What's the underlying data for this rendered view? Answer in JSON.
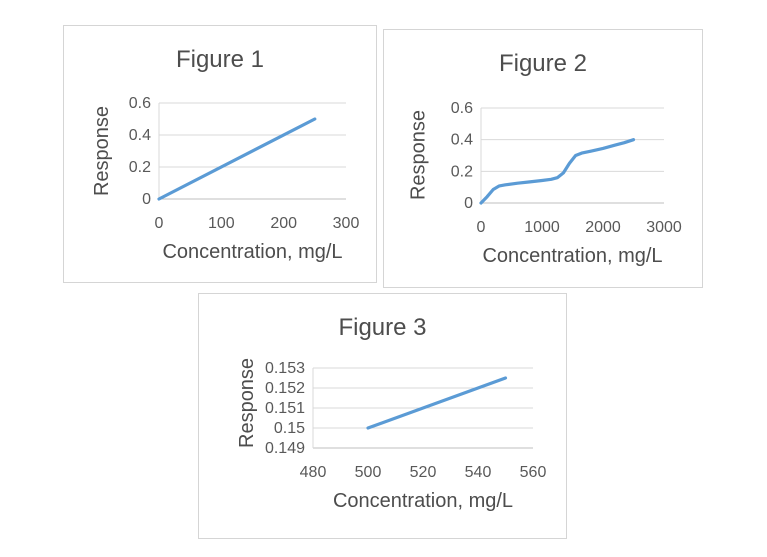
{
  "window": {
    "background": "#ffffff"
  },
  "colors": {
    "line": "#5B9BD5",
    "grid": "#D9D9D9",
    "axis": "#BFBFBF",
    "tick_text": "#595959",
    "title_text": "#4D4D4D",
    "panel_border": "#D5D5D5"
  },
  "chart_data": [
    {
      "type": "line",
      "title": "Figure 1",
      "xlabel": "Concentration, mg/L",
      "ylabel": "Response",
      "xlim": [
        0,
        300
      ],
      "ylim": [
        0,
        0.6
      ],
      "xticks": [
        0,
        100,
        200,
        300
      ],
      "xtick_labels": [
        "0",
        "100",
        "200",
        "300"
      ],
      "yticks": [
        0,
        0.2,
        0.4,
        0.6
      ],
      "ytick_labels": [
        "0",
        "0.2",
        "0.4",
        "0.6"
      ],
      "grid": "horizontal",
      "legend": "none",
      "series": [
        {
          "name": "Response",
          "color": "#5B9BD5",
          "points": [
            [
              0,
              0
            ],
            [
              250,
              0.5
            ]
          ]
        }
      ]
    },
    {
      "type": "line",
      "title": "Figure 2",
      "xlabel": "Concentration, mg/L",
      "ylabel": "Response",
      "xlim": [
        0,
        3000
      ],
      "ylim": [
        0,
        0.6
      ],
      "xticks": [
        0,
        1000,
        2000,
        3000
      ],
      "xtick_labels": [
        "0",
        "1000",
        "2000",
        "3000"
      ],
      "yticks": [
        0,
        0.2,
        0.4,
        0.6
      ],
      "ytick_labels": [
        "0",
        "0.2",
        "0.4",
        "0.6"
      ],
      "grid": "horizontal",
      "legend": "none",
      "series": [
        {
          "name": "Response",
          "color": "#5B9BD5",
          "points": [
            [
              0,
              0
            ],
            [
              100,
              0.04
            ],
            [
              200,
              0.085
            ],
            [
              300,
              0.108
            ],
            [
              400,
              0.115
            ],
            [
              600,
              0.125
            ],
            [
              800,
              0.133
            ],
            [
              1000,
              0.142
            ],
            [
              1150,
              0.15
            ],
            [
              1250,
              0.16
            ],
            [
              1350,
              0.19
            ],
            [
              1450,
              0.25
            ],
            [
              1550,
              0.3
            ],
            [
              1650,
              0.315
            ],
            [
              1800,
              0.327
            ],
            [
              2000,
              0.345
            ],
            [
              2200,
              0.366
            ],
            [
              2350,
              0.381
            ],
            [
              2500,
              0.4
            ]
          ]
        }
      ]
    },
    {
      "type": "line",
      "title": "Figure 3",
      "xlabel": "Concentration, mg/L",
      "ylabel": "Response",
      "xlim": [
        480,
        560
      ],
      "ylim": [
        0.149,
        0.153
      ],
      "xticks": [
        480,
        500,
        520,
        540,
        560
      ],
      "xtick_labels": [
        "480",
        "500",
        "520",
        "540",
        "560"
      ],
      "yticks": [
        0.149,
        0.15,
        0.151,
        0.152,
        0.153
      ],
      "ytick_labels": [
        "0.149",
        "0.15",
        "0.151",
        "0.152",
        "0.153"
      ],
      "grid": "horizontal",
      "legend": "none",
      "series": [
        {
          "name": "Response",
          "color": "#5B9BD5",
          "points": [
            [
              500,
              0.15
            ],
            [
              550,
              0.1525
            ]
          ]
        }
      ]
    }
  ]
}
